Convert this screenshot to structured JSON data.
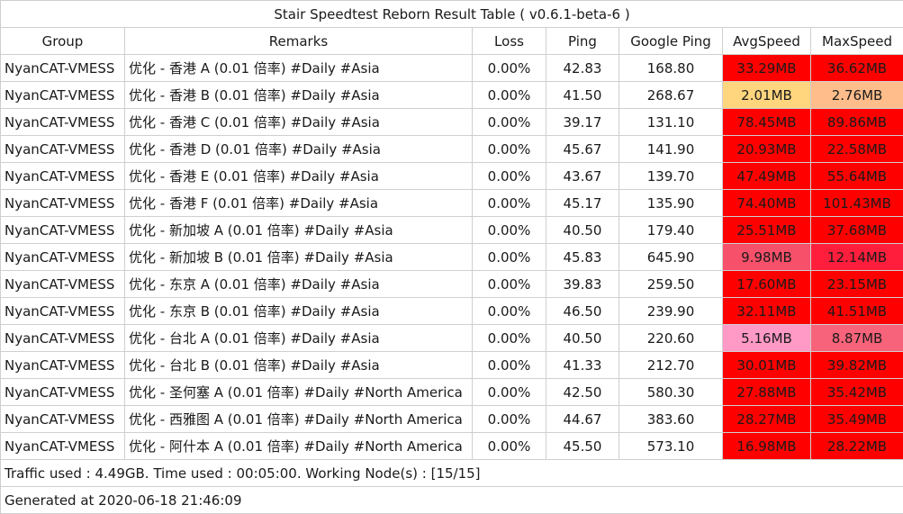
{
  "title": "Stair Speedtest Reborn Result Table ( v0.6.1-beta-6 )",
  "columns": [
    "Group",
    "Remarks",
    "Loss",
    "Ping",
    "Google Ping",
    "AvgSpeed",
    "MaxSpeed"
  ],
  "rows": [
    {
      "group": "NyanCAT-VMESS",
      "remarks": "优化 - 香港 A (0.01 倍率) #Daily #Asia",
      "loss": "0.00%",
      "ping": "42.83",
      "google_ping": "168.80",
      "avg_speed": "33.29MB",
      "avg_color": "#ff0000",
      "max_speed": "36.62MB",
      "max_color": "#ff0000"
    },
    {
      "group": "NyanCAT-VMESS",
      "remarks": "优化 - 香港 B (0.01 倍率) #Daily #Asia",
      "loss": "0.00%",
      "ping": "41.50",
      "google_ping": "268.67",
      "avg_speed": "2.01MB",
      "avg_color": "#ffd57e",
      "max_speed": "2.76MB",
      "max_color": "#ffbd8b"
    },
    {
      "group": "NyanCAT-VMESS",
      "remarks": "优化 - 香港 C (0.01 倍率) #Daily #Asia",
      "loss": "0.00%",
      "ping": "39.17",
      "google_ping": "131.10",
      "avg_speed": "78.45MB",
      "avg_color": "#ff0000",
      "max_speed": "89.86MB",
      "max_color": "#ff0000"
    },
    {
      "group": "NyanCAT-VMESS",
      "remarks": "优化 - 香港 D (0.01 倍率) #Daily #Asia",
      "loss": "0.00%",
      "ping": "45.67",
      "google_ping": "141.90",
      "avg_speed": "20.93MB",
      "avg_color": "#ff0000",
      "max_speed": "22.58MB",
      "max_color": "#ff0000"
    },
    {
      "group": "NyanCAT-VMESS",
      "remarks": "优化 - 香港 E (0.01 倍率) #Daily #Asia",
      "loss": "0.00%",
      "ping": "43.67",
      "google_ping": "139.70",
      "avg_speed": "47.49MB",
      "avg_color": "#ff0000",
      "max_speed": "55.64MB",
      "max_color": "#ff0000"
    },
    {
      "group": "NyanCAT-VMESS",
      "remarks": "优化 - 香港 F (0.01 倍率) #Daily #Asia",
      "loss": "0.00%",
      "ping": "45.17",
      "google_ping": "135.90",
      "avg_speed": "74.40MB",
      "avg_color": "#ff0000",
      "max_speed": "101.43MB",
      "max_color": "#ff0000"
    },
    {
      "group": "NyanCAT-VMESS",
      "remarks": "优化 - 新加坡 A (0.01 倍率) #Daily #Asia",
      "loss": "0.00%",
      "ping": "40.50",
      "google_ping": "179.40",
      "avg_speed": "25.51MB",
      "avg_color": "#ff0000",
      "max_speed": "37.68MB",
      "max_color": "#ff0000"
    },
    {
      "group": "NyanCAT-VMESS",
      "remarks": "优化 - 新加坡 B (0.01 倍率) #Daily #Asia",
      "loss": "0.00%",
      "ping": "45.83",
      "google_ping": "645.90",
      "avg_speed": "9.98MB",
      "avg_color": "#f7506a",
      "max_speed": "12.14MB",
      "max_color": "#ff1e3c"
    },
    {
      "group": "NyanCAT-VMESS",
      "remarks": "优化 - 东京 A (0.01 倍率) #Daily #Asia",
      "loss": "0.00%",
      "ping": "39.83",
      "google_ping": "259.50",
      "avg_speed": "17.60MB",
      "avg_color": "#ff0000",
      "max_speed": "23.15MB",
      "max_color": "#ff0000"
    },
    {
      "group": "NyanCAT-VMESS",
      "remarks": "优化 - 东京 B (0.01 倍率) #Daily #Asia",
      "loss": "0.00%",
      "ping": "46.50",
      "google_ping": "239.90",
      "avg_speed": "32.11MB",
      "avg_color": "#ff0000",
      "max_speed": "41.51MB",
      "max_color": "#ff0000"
    },
    {
      "group": "NyanCAT-VMESS",
      "remarks": "优化 - 台北 A (0.01 倍率) #Daily #Asia",
      "loss": "0.00%",
      "ping": "40.50",
      "google_ping": "220.60",
      "avg_speed": "5.16MB",
      "avg_color": "#ff99c6",
      "max_speed": "8.87MB",
      "max_color": "#f7637a"
    },
    {
      "group": "NyanCAT-VMESS",
      "remarks": "优化 - 台北 B (0.01 倍率) #Daily #Asia",
      "loss": "0.00%",
      "ping": "41.33",
      "google_ping": "212.70",
      "avg_speed": "30.01MB",
      "avg_color": "#ff0000",
      "max_speed": "39.82MB",
      "max_color": "#ff0000"
    },
    {
      "group": "NyanCAT-VMESS",
      "remarks": "优化 - 圣何塞 A (0.01 倍率) #Daily #North America",
      "loss": "0.00%",
      "ping": "42.50",
      "google_ping": "580.30",
      "avg_speed": "27.88MB",
      "avg_color": "#ff0000",
      "max_speed": "35.42MB",
      "max_color": "#ff0000"
    },
    {
      "group": "NyanCAT-VMESS",
      "remarks": "优化 - 西雅图 A (0.01 倍率) #Daily #North America",
      "loss": "0.00%",
      "ping": "44.67",
      "google_ping": "383.60",
      "avg_speed": "28.27MB",
      "avg_color": "#ff0000",
      "max_speed": "35.49MB",
      "max_color": "#ff0000"
    },
    {
      "group": "NyanCAT-VMESS",
      "remarks": "优化 - 阿什本 A (0.01 倍率) #Daily #North America",
      "loss": "0.00%",
      "ping": "45.50",
      "google_ping": "573.10",
      "avg_speed": "16.98MB",
      "avg_color": "#ff0000",
      "max_speed": "28.22MB",
      "max_color": "#ff0000"
    }
  ],
  "footer": {
    "traffic": "Traffic used : 4.49GB. Time used : 00:05:00. Working Node(s) : [15/15]",
    "generated": "Generated at 2020-06-18 21:46:09"
  }
}
